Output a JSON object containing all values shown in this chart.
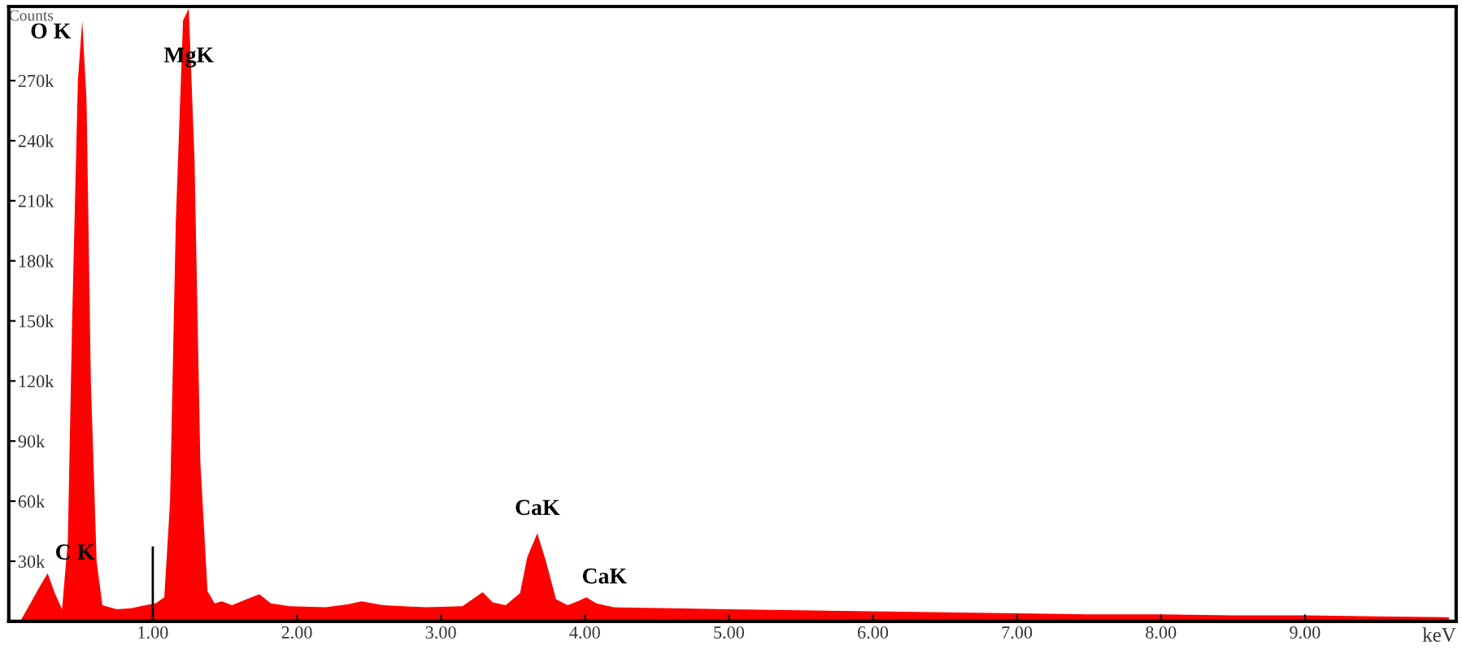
{
  "chart_data": {
    "type": "area",
    "xlabel": "keV",
    "ylabel": "Counts",
    "x": [
      0.08,
      0.15,
      0.22,
      0.27,
      0.32,
      0.37,
      0.41,
      0.44,
      0.48,
      0.51,
      0.54,
      0.57,
      0.61,
      0.65,
      0.75,
      0.85,
      0.95,
      1.02,
      1.08,
      1.12,
      1.16,
      1.21,
      1.25,
      1.29,
      1.33,
      1.38,
      1.43,
      1.48,
      1.55,
      1.65,
      1.74,
      1.82,
      1.95,
      2.2,
      2.35,
      2.45,
      2.6,
      2.9,
      3.15,
      3.24,
      3.29,
      3.36,
      3.45,
      3.55,
      3.6,
      3.67,
      3.73,
      3.8,
      3.88,
      3.95,
      4.01,
      4.08,
      4.2,
      4.6,
      5.0,
      5.5,
      6.0,
      6.5,
      7.0,
      7.5,
      8.0,
      8.5,
      9.0,
      9.5,
      10.0
    ],
    "series": [
      {
        "color": "#ff0000",
        "values": [
          0,
          9000,
          18000,
          24000,
          14000,
          6000,
          40000,
          150000,
          270000,
          300000,
          260000,
          120000,
          30000,
          8000,
          6000,
          6500,
          8000,
          9000,
          12000,
          60000,
          200000,
          300000,
          306000,
          230000,
          80000,
          15000,
          9000,
          10000,
          8000,
          11000,
          13500,
          9000,
          7500,
          7000,
          8500,
          10000,
          8000,
          7000,
          7500,
          12000,
          14500,
          9500,
          8000,
          14000,
          32000,
          44000,
          30000,
          11000,
          8000,
          10000,
          12000,
          9000,
          7000,
          6500,
          6000,
          5500,
          5000,
          4500,
          4000,
          3500,
          3500,
          3000,
          3000,
          2500,
          2000
        ]
      }
    ],
    "xlim": [
      0,
      10.05
    ],
    "ylim": [
      0,
      307000
    ],
    "xticks": [
      {
        "value": 1,
        "label": "1.00"
      },
      {
        "value": 2,
        "label": "2.00"
      },
      {
        "value": 3,
        "label": "3.00"
      },
      {
        "value": 4,
        "label": "4.00"
      },
      {
        "value": 5,
        "label": "5.00"
      },
      {
        "value": 6,
        "label": "6.00"
      },
      {
        "value": 7,
        "label": "7.00"
      },
      {
        "value": 8,
        "label": "8.00"
      },
      {
        "value": 9,
        "label": "9.00"
      }
    ],
    "yticks": [
      {
        "value": 30000,
        "label": "30k"
      },
      {
        "value": 60000,
        "label": "60k"
      },
      {
        "value": 90000,
        "label": "90k"
      },
      {
        "value": 120000,
        "label": "120k"
      },
      {
        "value": 150000,
        "label": "150k"
      },
      {
        "value": 180000,
        "label": "180k"
      },
      {
        "value": 210000,
        "label": "210k"
      },
      {
        "value": 240000,
        "label": "240k"
      },
      {
        "value": 270000,
        "label": "270k"
      }
    ],
    "ref_lines": [
      {
        "axis": "x",
        "value": 1.0,
        "color": "#000000"
      }
    ],
    "annotations": [
      {
        "text": "C K",
        "x": 0.27,
        "y": 24000
      },
      {
        "text": "O K",
        "x": 0.51,
        "y": 300000
      },
      {
        "text": "MgK",
        "x": 1.25,
        "y": 306000
      },
      {
        "text": "CaK",
        "x": 3.67,
        "y": 44000
      },
      {
        "text": "CaK",
        "x": 4.01,
        "y": 12000
      }
    ],
    "grid": false
  }
}
